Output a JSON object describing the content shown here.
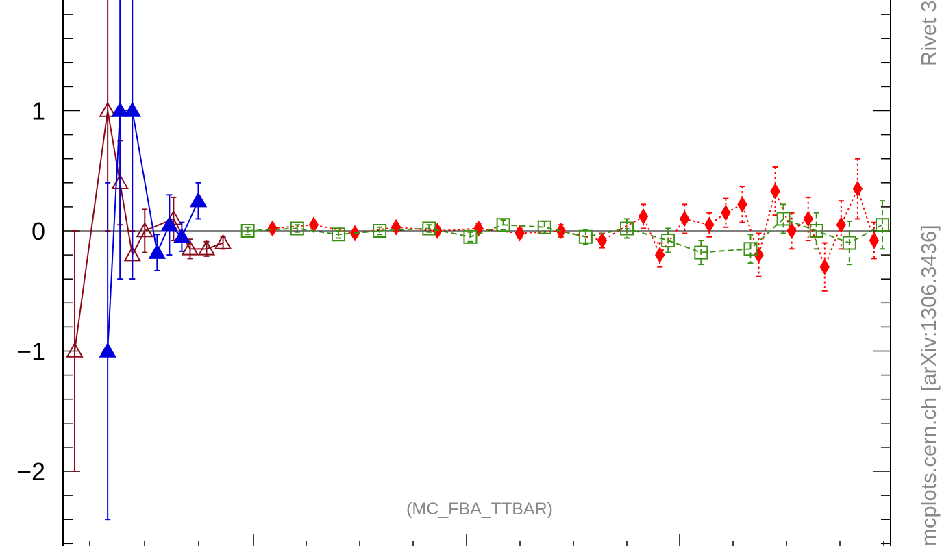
{
  "chart_data": {
    "type": "scatter",
    "title": "",
    "xlabel": "",
    "ylabel": "",
    "ylim": [
      -2.6,
      1.95
    ],
    "xlim": [
      0,
      1
    ],
    "grid": false,
    "y_ticks": [
      -2,
      -1,
      0,
      1
    ],
    "y_tick_labels": [
      "−2",
      "−1",
      "0",
      "1"
    ],
    "annotation": "(MC_FBA_TTBAR)",
    "side_text_main": "mcplots.cern.ch [arXiv:1306.3436]",
    "side_text_top": "Rivet 3",
    "series": [
      {
        "color": "#8b0a1a",
        "marker": "open-triangle",
        "line": "solid",
        "x": [
          0.01,
          0.05,
          0.065,
          0.08,
          0.095,
          0.13,
          0.15,
          0.17,
          0.19
        ],
        "y": [
          -1.0,
          1.0,
          0.4,
          -0.2,
          0.0,
          0.1,
          -0.15,
          -0.15,
          -0.1
        ],
        "yerr": [
          1.0,
          1.0,
          0.35,
          0.2,
          0.18,
          0.18,
          0.08,
          0.06,
          0.05
        ]
      },
      {
        "color": "#0000dd",
        "marker": "filled-triangle",
        "line": "solid",
        "x": [
          0.05,
          0.065,
          0.08,
          0.11,
          0.125,
          0.14,
          0.16
        ],
        "y": [
          -1.0,
          1.0,
          1.0,
          -0.18,
          0.05,
          -0.05,
          0.25
        ],
        "yerr": [
          1.4,
          1.4,
          1.4,
          0.15,
          0.25,
          0.12,
          0.15
        ]
      },
      {
        "color": "#ff0000",
        "marker": "filled-diamond",
        "line": "dotted",
        "x": [
          0.25,
          0.3,
          0.35,
          0.4,
          0.45,
          0.5,
          0.55,
          0.6,
          0.65,
          0.7,
          0.72,
          0.75,
          0.78,
          0.8,
          0.82,
          0.84,
          0.86,
          0.88,
          0.9,
          0.92,
          0.94,
          0.96,
          0.98
        ],
        "y": [
          0.02,
          0.05,
          -0.02,
          0.03,
          0.0,
          0.02,
          -0.02,
          0.0,
          -0.08,
          0.12,
          -0.2,
          0.1,
          0.05,
          0.15,
          0.22,
          -0.2,
          0.33,
          0.0,
          0.1,
          -0.3,
          0.05,
          0.35,
          -0.08
        ],
        "yerr": [
          0.03,
          0.03,
          0.03,
          0.03,
          0.03,
          0.04,
          0.04,
          0.05,
          0.06,
          0.1,
          0.1,
          0.12,
          0.1,
          0.12,
          0.15,
          0.18,
          0.2,
          0.15,
          0.18,
          0.2,
          0.2,
          0.25,
          0.15
        ]
      },
      {
        "color": "#3a9010",
        "marker": "open-square",
        "line": "dashed",
        "x": [
          0.22,
          0.28,
          0.33,
          0.38,
          0.44,
          0.49,
          0.53,
          0.58,
          0.63,
          0.68,
          0.73,
          0.77,
          0.83,
          0.87,
          0.91,
          0.95,
          0.99
        ],
        "y": [
          0.0,
          0.02,
          -0.03,
          0.0,
          0.02,
          -0.05,
          0.05,
          0.03,
          -0.05,
          0.02,
          -0.08,
          -0.18,
          -0.15,
          0.1,
          0.0,
          -0.1,
          0.05
        ],
        "yerr": [
          0.03,
          0.03,
          0.03,
          0.03,
          0.03,
          0.04,
          0.04,
          0.05,
          0.06,
          0.08,
          0.1,
          0.1,
          0.12,
          0.12,
          0.15,
          0.18,
          0.2
        ]
      }
    ]
  }
}
